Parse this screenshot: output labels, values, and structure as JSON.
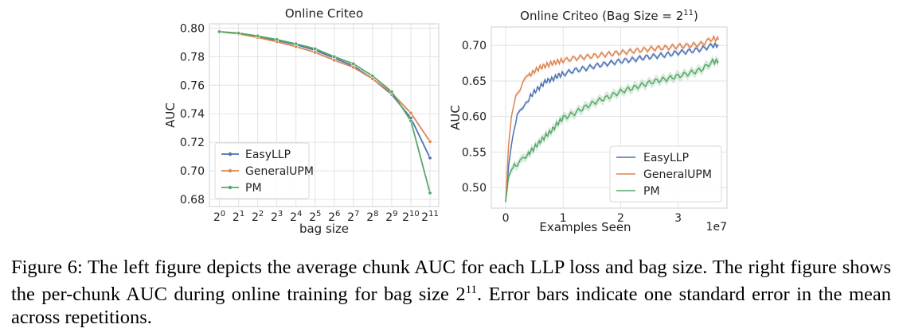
{
  "colors": {
    "easyllp": "#4c72b0",
    "generalupm": "#dd8452",
    "pm": "#55a868",
    "grid": "#e3e3e3",
    "axis": "#444444"
  },
  "caption": {
    "figure_label": "Figure 6:",
    "text_before": "The left figure depicts the average chunk AUC for each LLP loss and bag size. The right figure shows the per-chunk AUC during online training for bag size 2",
    "text_sup": "11",
    "text_after": ". Error bars indicate one standard error in the mean across repetitions."
  },
  "chart_data": [
    {
      "type": "line",
      "title": "Online Criteo",
      "xlabel": "bag size",
      "ylabel": "AUC",
      "categories": [
        "2^0",
        "2^1",
        "2^2",
        "2^3",
        "2^4",
        "2^5",
        "2^6",
        "2^7",
        "2^8",
        "2^9",
        "2^10",
        "2^11"
      ],
      "tick_base": "2",
      "tick_exponents": [
        "0",
        "1",
        "2",
        "3",
        "4",
        "5",
        "6",
        "7",
        "8",
        "9",
        "10",
        "11"
      ],
      "yticks": [
        "0.68",
        "0.70",
        "0.72",
        "0.74",
        "0.76",
        "0.78",
        "0.80"
      ],
      "ylim": [
        0.675,
        0.803
      ],
      "grid": true,
      "legend_position": "lower-left",
      "series": [
        {
          "name": "EasyLLP",
          "color_key": "easyllp",
          "values": [
            0.7975,
            0.7962,
            0.7942,
            0.7915,
            0.7885,
            0.7845,
            0.779,
            0.7735,
            0.7645,
            0.7535,
            0.737,
            0.709
          ]
        },
        {
          "name": "GeneralUPM",
          "color_key": "generalupm",
          "values": [
            0.7975,
            0.796,
            0.7935,
            0.7905,
            0.787,
            0.783,
            0.7775,
            0.7725,
            0.7645,
            0.7545,
            0.7405,
            0.7205
          ]
        },
        {
          "name": "PM",
          "color_key": "pm",
          "values": [
            0.7975,
            0.7965,
            0.7945,
            0.792,
            0.789,
            0.7855,
            0.78,
            0.775,
            0.7665,
            0.7555,
            0.735,
            0.6845
          ]
        }
      ]
    },
    {
      "type": "line",
      "title_prefix": "Online Criteo (Bag Size = 2",
      "title_sup": "11",
      "title_suffix": ")",
      "xlabel": "Examples Seen",
      "ylabel": "AUC",
      "x_offset_label": "1e7",
      "xticks": [
        "0",
        "1",
        "2",
        "3"
      ],
      "yticks": [
        "0.50",
        "0.55",
        "0.60",
        "0.65",
        "0.70"
      ],
      "xlim": [
        -0.25,
        3.85
      ],
      "ylim": [
        0.471,
        0.726
      ],
      "grid": true,
      "legend_position": "lower-right",
      "series": [
        {
          "name": "EasyLLP",
          "color_key": "easyllp",
          "x": [
            0,
            0.05,
            0.1,
            0.15,
            0.2,
            0.3,
            0.4,
            0.5,
            0.6,
            0.7,
            0.8,
            0.9,
            1.0,
            1.2,
            1.4,
            1.6,
            1.8,
            2.0,
            2.2,
            2.4,
            2.6,
            2.8,
            3.0,
            3.2,
            3.4,
            3.6,
            3.7
          ],
          "y": [
            0.48,
            0.53,
            0.56,
            0.585,
            0.6,
            0.615,
            0.625,
            0.635,
            0.642,
            0.65,
            0.652,
            0.657,
            0.66,
            0.665,
            0.668,
            0.672,
            0.675,
            0.678,
            0.68,
            0.683,
            0.685,
            0.687,
            0.69,
            0.692,
            0.695,
            0.7,
            0.701
          ]
        },
        {
          "name": "GeneralUPM",
          "color_key": "generalupm",
          "x": [
            0,
            0.05,
            0.1,
            0.15,
            0.2,
            0.3,
            0.4,
            0.5,
            0.6,
            0.7,
            0.8,
            0.9,
            1.0,
            1.2,
            1.4,
            1.6,
            1.8,
            2.0,
            2.2,
            2.4,
            2.6,
            2.8,
            3.0,
            3.2,
            3.4,
            3.6,
            3.7
          ],
          "y": [
            0.48,
            0.56,
            0.6,
            0.62,
            0.632,
            0.648,
            0.657,
            0.664,
            0.669,
            0.672,
            0.675,
            0.677,
            0.679,
            0.682,
            0.684,
            0.686,
            0.688,
            0.69,
            0.692,
            0.694,
            0.696,
            0.697,
            0.699,
            0.7,
            0.702,
            0.71,
            0.708
          ]
        },
        {
          "name": "PM",
          "color_key": "pm",
          "x": [
            0,
            0.05,
            0.1,
            0.15,
            0.2,
            0.3,
            0.4,
            0.5,
            0.6,
            0.7,
            0.8,
            0.9,
            1.0,
            1.2,
            1.4,
            1.6,
            1.8,
            2.0,
            2.2,
            2.4,
            2.6,
            2.8,
            3.0,
            3.2,
            3.4,
            3.6,
            3.7
          ],
          "y": [
            0.48,
            0.515,
            0.525,
            0.53,
            0.533,
            0.54,
            0.548,
            0.556,
            0.565,
            0.573,
            0.58,
            0.59,
            0.598,
            0.605,
            0.614,
            0.622,
            0.628,
            0.635,
            0.64,
            0.645,
            0.65,
            0.653,
            0.657,
            0.661,
            0.666,
            0.677,
            0.678
          ]
        }
      ]
    }
  ]
}
